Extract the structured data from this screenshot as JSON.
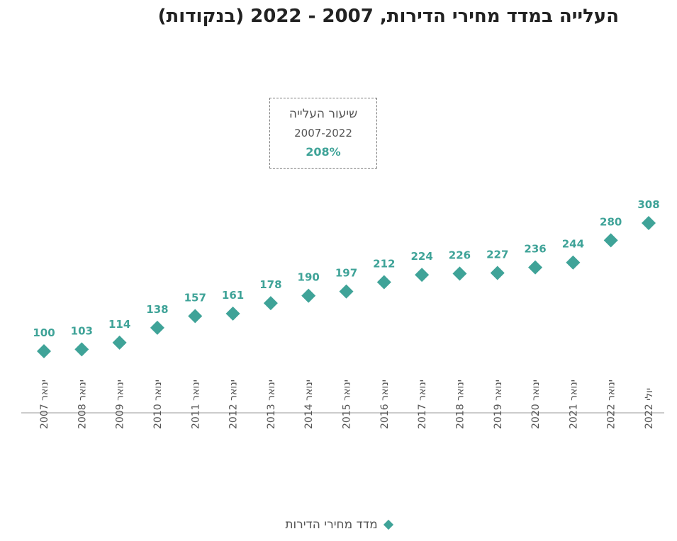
{
  "title": "העלייה במדד מחירי הדירות, 2007 - 2022 (בנקודות)",
  "info_box": {
    "line1": "שיעור העלייה",
    "line2": "2007-2022",
    "line3": "208%"
  },
  "legend": {
    "label": "מדד מחירי הדירות"
  },
  "colors": {
    "series": "#3fa398",
    "axis": "#cccccc",
    "text": "#555555"
  },
  "chart_data": {
    "type": "scatter",
    "categories": [
      "ינואר 2007",
      "ינואר 2008",
      "ינואר 2009",
      "ינואר 2010",
      "ינואר 2011",
      "ינואר 2012",
      "ינואר 2013",
      "ינואר 2014",
      "ינואר 2015",
      "ינואר 2016",
      "ינואר 2017",
      "ינואר 2018",
      "ינואר 2019",
      "ינואר 2020",
      "ינואר 2021",
      "ינואר 2022",
      "יולי 2022"
    ],
    "series": [
      {
        "name": "מדד מחירי הדירות",
        "values": [
          100,
          103,
          114,
          138,
          157,
          161,
          178,
          190,
          197,
          212,
          224,
          226,
          227,
          236,
          244,
          280,
          308
        ]
      }
    ],
    "ylim": [
      0,
      350
    ],
    "marker": "diamond",
    "data_labels": true,
    "grid": false,
    "legend_position": "bottom"
  }
}
